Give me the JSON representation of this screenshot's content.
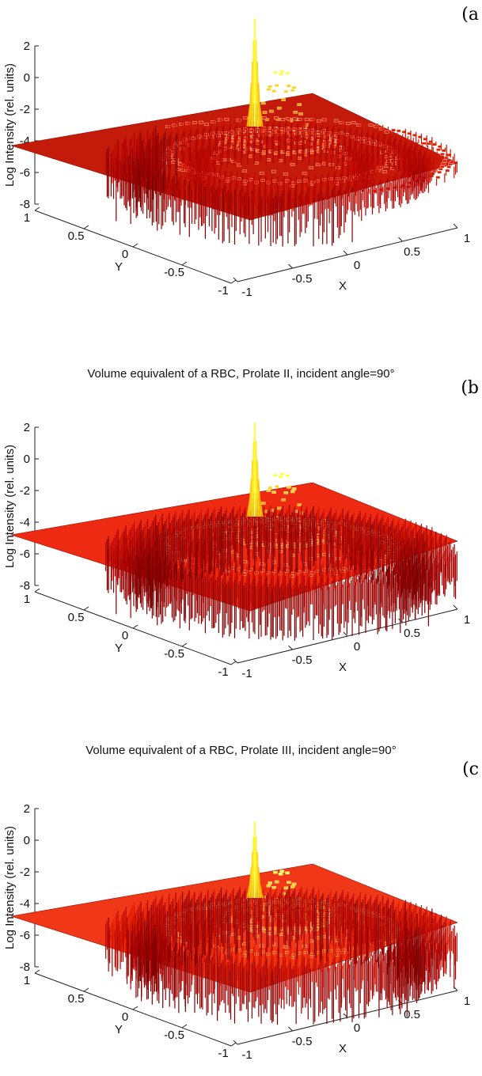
{
  "chart_data": [
    {
      "type": "surface",
      "panel_label": "(a",
      "title": "",
      "zlabel": "Log Intensity (rel. units)",
      "xlabel": "X",
      "ylabel": "Y",
      "zlim": [
        -8,
        2
      ],
      "xlim": [
        -1,
        1
      ],
      "ylim": [
        -1,
        1
      ],
      "z_ticks": [
        "2",
        "0",
        "-2",
        "-4",
        "-6",
        "-8"
      ],
      "x_ticks": [
        "-1",
        "-0.5",
        "0",
        "0.5",
        "1"
      ],
      "y_ticks": [
        "1",
        "0.5",
        "0",
        "-0.5",
        "-1"
      ],
      "background_level": -4.5,
      "peak_value": 0.8,
      "min_value": -8,
      "colormap": [
        "#7a0000",
        "#b00000",
        "#e82000",
        "#ff6a00",
        "#ffb000",
        "#ffff40"
      ],
      "plane_color": "#c41a0a"
    },
    {
      "type": "surface",
      "panel_label": "(b",
      "title": "Volume equivalent of a RBC, Prolate II, incident angle=90°",
      "zlabel": "Log Intensity (rel. units)",
      "xlabel": "X",
      "ylabel": "Y",
      "zlim": [
        -8,
        2
      ],
      "xlim": [
        -1,
        1
      ],
      "ylim": [
        -1,
        1
      ],
      "z_ticks": [
        "2",
        "0",
        "-2",
        "-4",
        "-6",
        "-8"
      ],
      "x_ticks": [
        "-1",
        "-0.5",
        "0",
        "0.5",
        "1"
      ],
      "y_ticks": [
        "1",
        "0.5",
        "0",
        "-0.5",
        "-1"
      ],
      "background_level": -4.3,
      "peak_value": 0.2,
      "min_value": -8,
      "colormap": [
        "#7a0000",
        "#b00000",
        "#e82000",
        "#ff6a00",
        "#ffb000",
        "#ffff40"
      ],
      "plane_color": "#ee2a12"
    },
    {
      "type": "surface",
      "panel_label": "(c",
      "title": "Volume equivalent of a RBC, Prolate III, incident angle=90°",
      "zlabel": "Log Intensity (rel. units)",
      "xlabel": "X",
      "ylabel": "Y",
      "zlim": [
        -8,
        2
      ],
      "xlim": [
        -1,
        1
      ],
      "ylim": [
        -1,
        1
      ],
      "z_ticks": [
        "2",
        "0",
        "-2",
        "-4",
        "-6",
        "-8"
      ],
      "x_ticks": [
        "-1",
        "-0.5",
        "0",
        "0.5",
        "1"
      ],
      "y_ticks": [
        "1",
        "0.5",
        "0",
        "-0.5",
        "-1"
      ],
      "background_level": -4.0,
      "peak_value": -0.5,
      "min_value": -8,
      "colormap": [
        "#7a0000",
        "#b00000",
        "#e82000",
        "#ff6a00",
        "#ffb000",
        "#ffff40"
      ],
      "plane_color": "#f03818"
    }
  ]
}
